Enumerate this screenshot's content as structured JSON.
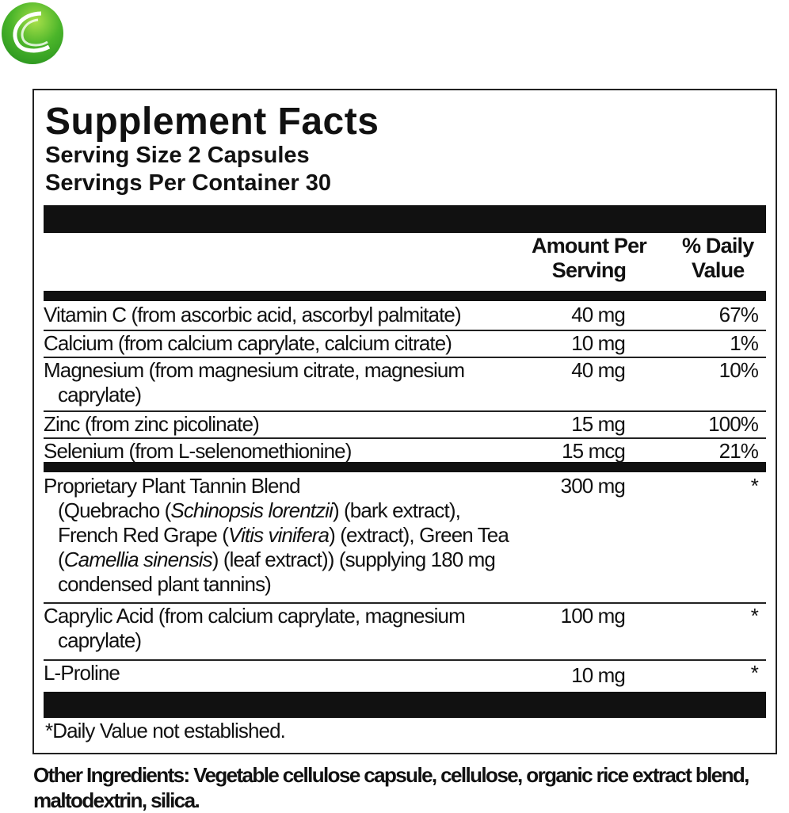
{
  "label": {
    "title": "Supplement Facts",
    "serving_size": "Serving Size 2 Capsules",
    "servings_per_container": "Servings Per Container 30",
    "col_amount": [
      "Amount Per",
      "Serving"
    ],
    "col_dv": [
      "% Daily",
      "Value"
    ],
    "rows": [
      {
        "name": "Vitamin C (from ascorbic acid, ascorbyl palmitate)",
        "amount": "40 mg",
        "dv": "67%"
      },
      {
        "name": "Calcium (from calcium caprylate, calcium citrate)",
        "amount": "10 mg",
        "dv": "1%"
      },
      {
        "name": "Magnesium (from magnesium citrate, magnesium",
        "name2": "caprylate)",
        "amount": "40 mg",
        "dv": "10%"
      },
      {
        "name": "Zinc (from zinc picolinate)",
        "amount": "15 mg",
        "dv": "100%"
      },
      {
        "name": "Selenium (from L-selenomethionine)",
        "amount": "15 mcg",
        "dv": "21%"
      },
      {
        "name": "Proprietary Plant Tannin Blend",
        "amount": "300 mg",
        "dv": "*"
      },
      {
        "name": "Caprylic Acid (from calcium caprylate, magnesium",
        "name2": "caprylate)",
        "amount": "100 mg",
        "dv": "*"
      },
      {
        "name": "L-Proline",
        "amount": "10 mg",
        "dv": "*"
      }
    ],
    "blend_detail": {
      "a": "(Quebracho (",
      "b": "Schinopsis lorentzii",
      "c": ") (bark extract), French Red Grape (",
      "d": "Vitis vinifera",
      "e": ") (extract), Green Tea (",
      "f": "Camellia sinensis",
      "g": ") (leaf extract)) (supplying 180 mg condensed plant tannins)"
    },
    "footnote": "*Daily Value not established."
  },
  "other_ingredients": {
    "label": "Other Ingredients:",
    "text": "Vegetable cellulose capsule, cellulose, organic rice extract blend, maltodextrin, silica."
  },
  "colors": {
    "logo": "#4bb52a",
    "text": "#111111"
  }
}
